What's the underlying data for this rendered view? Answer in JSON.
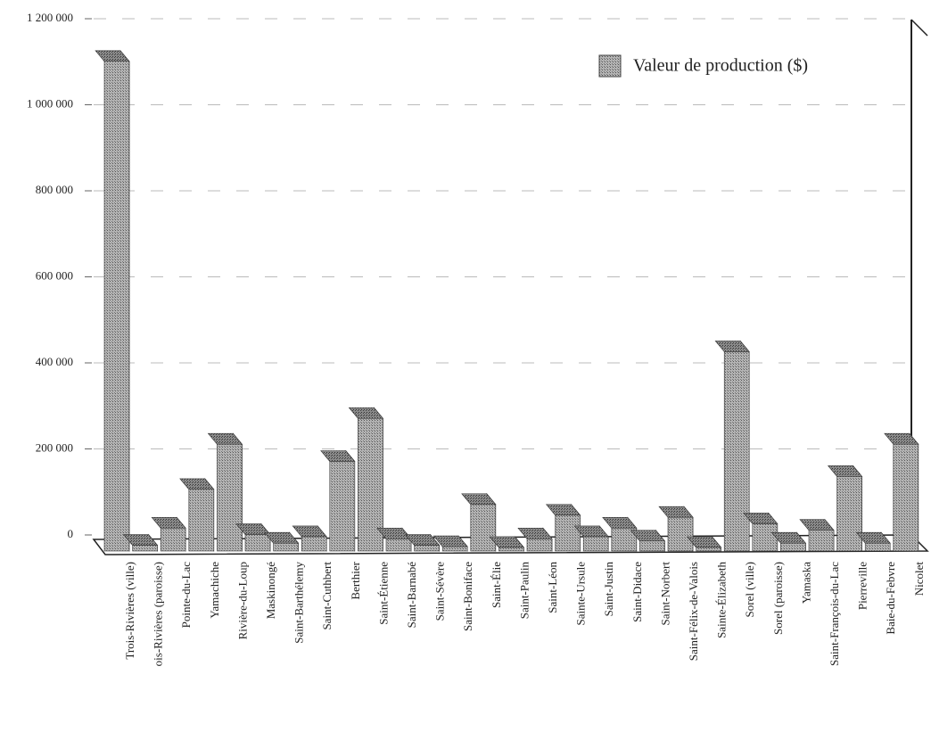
{
  "chart_data": {
    "type": "bar3d",
    "legend": "Valeur de production ($)",
    "legend_position": "upper right",
    "color": "#9a9a9a",
    "grid": true,
    "categories": [
      "Trois-Rivières (ville)",
      "ois-Rivières (paroisse)",
      "Pointe-du-Lac",
      "Yamachiche",
      "Rivière-du-Loup",
      "Maskinongé",
      "Saint-Barthélemy",
      "Saint-Cuthbert",
      "Berthier",
      "Saint-Étienne",
      "Saint-Barnabé",
      "Saint-Sévère",
      "Saint-Boniface",
      "Saint-Élie",
      "Saint-Paulin",
      "Saint-Léon",
      "Sainte-Ursule",
      "Saint-Justin",
      "Saint-Didace",
      "Saint-Norbert",
      "Saint-Félix-de-Valois",
      "Sainte-Élizabeth",
      "Sorel (ville)",
      "Sorel (paroisse)",
      "Yamaska",
      "Saint-François-du-Lac",
      "Pierreville",
      "Baie-du-Febvre",
      "Nicolet"
    ],
    "values": [
      1130000,
      5000,
      45000,
      135000,
      240000,
      30000,
      10000,
      25000,
      200000,
      300000,
      20000,
      5000,
      2000,
      100000,
      0,
      20000,
      75000,
      25000,
      45000,
      15000,
      70000,
      0,
      455000,
      55000,
      10000,
      40000,
      165000,
      10000,
      240000
    ],
    "ylim": [
      0,
      1200000
    ],
    "yticks": [
      {
        "value": 0,
        "label": "0"
      },
      {
        "value": 200000,
        "label": "200 000"
      },
      {
        "value": 400000,
        "label": "400 000"
      },
      {
        "value": 600000,
        "label": "600 000"
      },
      {
        "value": 800000,
        "label": "800 000"
      },
      {
        "value": 1000000,
        "label": "1 000 000"
      },
      {
        "value": 1200000,
        "label": "1 200 000"
      }
    ]
  }
}
